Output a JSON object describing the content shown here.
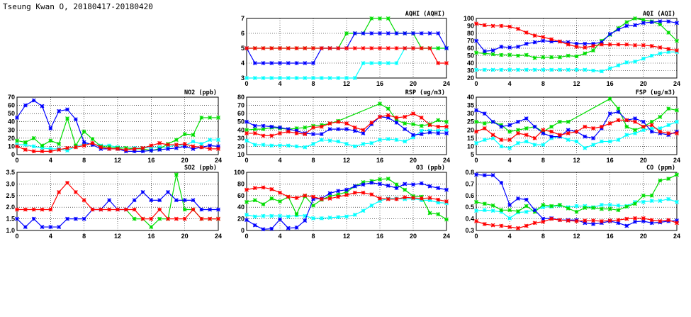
{
  "title": "Tseung Kwan O, 20180417-20180420",
  "chart_data": [
    {
      "type": "line",
      "title": "AQHI (AQHI)",
      "ylim": [
        3,
        7
      ],
      "yticks": [
        3,
        4,
        5,
        6,
        7
      ],
      "xlim": [
        0,
        24
      ],
      "xticks": [
        0,
        4,
        8,
        12,
        16,
        20,
        24
      ],
      "series": [
        {
          "color": "#00ffff",
          "values": [
            3,
            3,
            3,
            3,
            3,
            3,
            3,
            3,
            3,
            3,
            3,
            3,
            3,
            3,
            4,
            4,
            4,
            4,
            4,
            5,
            5,
            5,
            5,
            5,
            5
          ]
        },
        {
          "color": "#00dd00",
          "values": [
            5,
            5,
            5,
            5,
            5,
            5,
            5,
            5,
            5,
            5,
            5,
            5,
            6,
            6,
            6,
            7,
            7,
            7,
            6,
            6,
            6,
            5,
            5,
            5,
            5
          ]
        },
        {
          "color": "#0000ff",
          "values": [
            5,
            4,
            4,
            4,
            4,
            4,
            4,
            4,
            4,
            5,
            5,
            5,
            5,
            6,
            6,
            6,
            6,
            6,
            6,
            6,
            6,
            6,
            6,
            6,
            5
          ]
        },
        {
          "color": "#ff0000",
          "values": [
            5,
            5,
            5,
            5,
            5,
            5,
            5,
            5,
            5,
            5,
            5,
            5,
            5,
            5,
            5,
            5,
            5,
            5,
            5,
            5,
            5,
            5,
            5,
            4,
            4
          ]
        }
      ]
    },
    {
      "type": "line",
      "title": "AQI (AQI)",
      "ylim": [
        20,
        100
      ],
      "yticks": [
        20,
        30,
        40,
        50,
        60,
        70,
        80,
        90,
        100
      ],
      "xlim": [
        0,
        24
      ],
      "xticks": [
        0,
        4,
        8,
        12,
        16,
        20,
        24
      ],
      "series": [
        {
          "color": "#00ffff",
          "values": [
            31,
            31,
            31,
            31,
            31,
            31,
            31,
            31,
            31,
            31,
            31,
            31,
            31,
            31,
            30,
            29,
            33,
            37,
            41,
            42,
            46,
            50,
            53,
            55,
            55
          ]
        },
        {
          "color": "#00dd00",
          "values": [
            54,
            53,
            52,
            51,
            51,
            50,
            51,
            47,
            48,
            48,
            48,
            50,
            49,
            53,
            57,
            70,
            78,
            87,
            95,
            100,
            98,
            96,
            92,
            81,
            70
          ]
        },
        {
          "color": "#0000ff",
          "values": [
            70,
            56,
            57,
            62,
            61,
            62,
            66,
            68,
            70,
            69,
            69,
            68,
            66,
            66,
            66,
            68,
            79,
            85,
            90,
            91,
            94,
            95,
            96,
            96,
            94
          ]
        },
        {
          "color": "#ff0000",
          "values": [
            93,
            91,
            90,
            90,
            89,
            86,
            81,
            77,
            75,
            72,
            69,
            65,
            62,
            61,
            63,
            65,
            65,
            65,
            65,
            64,
            64,
            63,
            61,
            59,
            57
          ]
        }
      ]
    },
    {
      "type": "line",
      "title": "NO2 (ppb)",
      "ylim": [
        0,
        70
      ],
      "yticks": [
        0,
        10,
        20,
        30,
        40,
        50,
        60,
        70
      ],
      "xlim": [
        0,
        24
      ],
      "xticks": [
        0,
        4,
        8,
        12,
        16,
        20,
        24
      ],
      "series": [
        {
          "color": "#00ffff",
          "values": [
            12,
            12,
            10,
            8,
            7,
            7,
            5,
            10,
            13,
            13,
            11,
            11,
            9,
            8,
            8,
            8,
            9,
            9,
            9,
            12,
            11,
            16,
            13,
            18,
            18
          ]
        },
        {
          "color": "#00dd00",
          "values": [
            17,
            15,
            20,
            11,
            17,
            13,
            44,
            11,
            28,
            19,
            10,
            9,
            8,
            8,
            7,
            7,
            5,
            7,
            13,
            18,
            25,
            24,
            45,
            45,
            45
          ]
        },
        {
          "color": "#0000ff",
          "values": [
            45,
            60,
            66,
            59,
            32,
            53,
            55,
            43,
            15,
            12,
            7,
            7,
            7,
            4,
            4,
            4,
            5,
            6,
            7,
            8,
            10,
            7,
            9,
            11,
            10
          ]
        },
        {
          "color": "#ff0000",
          "values": [
            10,
            6,
            4,
            4,
            4,
            6,
            8,
            9,
            11,
            14,
            9,
            7,
            7,
            6,
            7,
            8,
            11,
            14,
            12,
            12,
            13,
            10,
            9,
            7,
            7
          ]
        }
      ]
    },
    {
      "type": "line",
      "title": "RSP (ug/m3)",
      "ylim": [
        10,
        80
      ],
      "yticks": [
        10,
        20,
        30,
        40,
        50,
        60,
        70,
        80
      ],
      "xlim": [
        0,
        24
      ],
      "xticks": [
        0,
        4,
        8,
        12,
        16,
        20,
        24
      ],
      "series": [
        {
          "color": "#00ffff",
          "values": [
            27,
            22,
            22,
            21,
            21,
            21,
            20,
            19,
            23,
            28,
            27,
            26,
            23,
            20,
            23,
            24,
            28,
            29,
            28,
            26,
            31,
            39,
            39,
            39,
            40
          ]
        },
        {
          "color": "#00dd00",
          "values": [
            40,
            41,
            41,
            43,
            42,
            41,
            42,
            43,
            45,
            46,
            48,
            51,
            null,
            null,
            null,
            null,
            72,
            66,
            52,
            48,
            47,
            45,
            47,
            52,
            50
          ]
        },
        {
          "color": "#0000ff",
          "values": [
            50,
            45,
            45,
            44,
            43,
            41,
            39,
            36,
            35,
            35,
            41,
            41,
            41,
            39,
            36,
            47,
            56,
            55,
            49,
            41,
            34,
            35,
            37,
            36,
            36
          ]
        },
        {
          "color": "#ff0000",
          "values": [
            36,
            36,
            33,
            33,
            36,
            38,
            36,
            35,
            43,
            44,
            48,
            50,
            48,
            43,
            40,
            49,
            56,
            58,
            55,
            56,
            60,
            55,
            46,
            44,
            44
          ]
        }
      ]
    },
    {
      "type": "line",
      "title": "FSP (ug/m3)",
      "ylim": [
        5,
        40
      ],
      "yticks": [
        5,
        10,
        15,
        20,
        25,
        30,
        35,
        40
      ],
      "xlim": [
        0,
        24
      ],
      "xticks": [
        0,
        4,
        8,
        12,
        16,
        20,
        24
      ],
      "series": [
        {
          "color": "#00ffff",
          "values": [
            12,
            14,
            15,
            10,
            9,
            12,
            13,
            11,
            11,
            15,
            16,
            14,
            13,
            9,
            11,
            13,
            13,
            14,
            17,
            18,
            20,
            21,
            21,
            23,
            25
          ]
        },
        {
          "color": "#00dd00",
          "values": [
            25,
            24,
            25,
            23,
            19,
            20,
            21,
            22,
            19,
            22,
            25,
            25,
            null,
            null,
            null,
            null,
            39,
            33,
            22,
            20,
            22,
            25,
            28,
            33,
            32
          ]
        },
        {
          "color": "#0000ff",
          "values": [
            32,
            30,
            25,
            22,
            23,
            25,
            27,
            22,
            18,
            16,
            16,
            20,
            19,
            16,
            15,
            21,
            30,
            31,
            26,
            27,
            25,
            19,
            18,
            17,
            19
          ]
        },
        {
          "color": "#ff0000",
          "values": [
            19,
            21,
            17,
            14,
            14,
            18,
            17,
            15,
            20,
            19,
            17,
            18,
            19,
            22,
            21,
            22,
            24,
            26,
            26,
            25,
            22,
            23,
            19,
            18,
            18
          ]
        }
      ]
    },
    {
      "type": "line",
      "title": "SO2 (ppb)",
      "ylim": [
        1.0,
        3.5
      ],
      "yticks": [
        "1.0",
        "1.5",
        "2.0",
        "2.5",
        "3.0",
        "3.5"
      ],
      "xlim": [
        0,
        24
      ],
      "xticks": [
        0,
        4,
        8,
        12,
        16,
        20,
        24
      ],
      "series": [
        {
          "color": "#00dd00",
          "values": [
            null,
            null,
            null,
            null,
            null,
            null,
            null,
            null,
            null,
            null,
            null,
            null,
            null,
            1.9,
            1.5,
            1.5,
            1.15,
            1.5,
            1.5,
            3.4,
            1.9,
            1.9,
            1.5,
            1.5,
            1.5
          ]
        },
        {
          "color": "#0000ff",
          "values": [
            1.5,
            1.15,
            1.5,
            1.15,
            1.15,
            1.15,
            1.5,
            1.5,
            1.5,
            1.9,
            1.9,
            2.3,
            1.9,
            1.9,
            2.3,
            2.65,
            2.3,
            2.3,
            2.65,
            2.3,
            2.3,
            2.3,
            1.9,
            1.9,
            1.9
          ]
        },
        {
          "color": "#ff0000",
          "values": [
            1.9,
            1.9,
            1.9,
            1.9,
            1.9,
            2.65,
            3.05,
            2.65,
            2.3,
            1.9,
            1.9,
            1.9,
            1.9,
            1.9,
            1.9,
            1.5,
            1.5,
            1.9,
            1.5,
            1.5,
            1.5,
            1.9,
            1.5,
            1.5,
            1.5
          ]
        }
      ]
    },
    {
      "type": "line",
      "title": "O3 (ppb)",
      "ylim": [
        0,
        100
      ],
      "yticks": [
        0,
        20,
        40,
        60,
        80,
        100
      ],
      "xlim": [
        0,
        24
      ],
      "xticks": [
        0,
        4,
        8,
        12,
        16,
        20,
        24
      ],
      "series": [
        {
          "color": "#00ffff",
          "values": [
            27,
            24,
            25,
            25,
            25,
            24,
            26,
            25,
            21,
            21,
            22,
            23,
            24,
            27,
            34,
            43,
            51,
            55,
            55,
            54,
            55,
            52,
            52,
            48,
            47
          ]
        },
        {
          "color": "#00dd00",
          "values": [
            49,
            52,
            45,
            55,
            50,
            58,
            28,
            59,
            43,
            53,
            59,
            62,
            66,
            76,
            83,
            85,
            88,
            89,
            79,
            70,
            59,
            58,
            30,
            28,
            19
          ]
        },
        {
          "color": "#0000ff",
          "values": [
            18,
            9,
            2,
            3,
            19,
            4,
            5,
            17,
            54,
            55,
            64,
            68,
            70,
            76,
            79,
            82,
            80,
            77,
            73,
            80,
            79,
            81,
            76,
            73,
            70
          ]
        },
        {
          "color": "#ff0000",
          "values": [
            70,
            73,
            74,
            71,
            65,
            58,
            56,
            60,
            58,
            54,
            55,
            58,
            61,
            65,
            65,
            62,
            55,
            54,
            54,
            57,
            56,
            55,
            56,
            53,
            50
          ]
        }
      ]
    },
    {
      "type": "line",
      "title": "CO (ppm)",
      "ylim": [
        0.3,
        0.8
      ],
      "yticks": [
        "0.3",
        "0.4",
        "0.5",
        "0.6",
        "0.7",
        "0.8"
      ],
      "xlim": [
        0,
        24
      ],
      "xticks": [
        0,
        4,
        8,
        12,
        16,
        20,
        24
      ],
      "series": [
        {
          "color": "#00ffff",
          "values": [
            0.47,
            0.475,
            0.47,
            0.46,
            0.405,
            0.455,
            0.46,
            0.475,
            0.5,
            0.505,
            0.515,
            0.5,
            0.51,
            0.51,
            0.5,
            0.52,
            0.52,
            0.515,
            0.51,
            0.545,
            0.545,
            0.555,
            0.555,
            0.57,
            0.545
          ]
        },
        {
          "color": "#00dd00",
          "values": [
            0.545,
            0.53,
            0.515,
            0.475,
            0.475,
            0.465,
            0.51,
            0.46,
            0.52,
            0.51,
            0.52,
            0.49,
            0.46,
            0.495,
            0.495,
            0.485,
            0.485,
            0.475,
            0.505,
            0.53,
            0.6,
            0.6,
            0.73,
            0.745,
            0.78
          ]
        },
        {
          "color": "#0000ff",
          "values": [
            0.78,
            0.775,
            0.775,
            0.71,
            0.52,
            0.575,
            0.565,
            0.475,
            0.4,
            0.405,
            0.39,
            0.39,
            0.39,
            0.365,
            0.355,
            0.365,
            0.38,
            0.365,
            0.34,
            0.375,
            0.38,
            0.365,
            0.37,
            0.38,
            0.385
          ]
        },
        {
          "color": "#ff0000",
          "values": [
            0.38,
            0.355,
            0.345,
            0.34,
            0.33,
            0.32,
            0.34,
            0.365,
            0.375,
            0.4,
            0.39,
            0.385,
            0.38,
            0.385,
            0.385,
            0.38,
            0.385,
            0.39,
            0.4,
            0.405,
            0.405,
            0.39,
            0.38,
            0.39,
            0.365
          ]
        }
      ]
    }
  ]
}
